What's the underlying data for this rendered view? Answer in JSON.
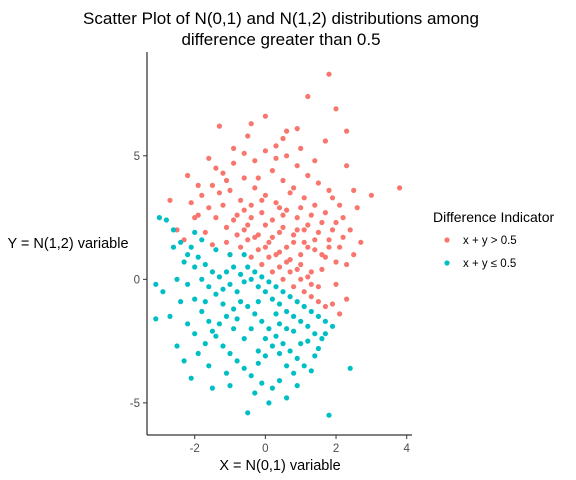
{
  "chart_data": {
    "type": "scatter",
    "title_line1": "Scatter Plot of N(0,1) and N(1,2) distributions among",
    "title_line2": "difference greater than 0.5",
    "xlabel": "X = N(0,1) variable",
    "ylabel": "Y = N(1,2) variable",
    "xlim": [
      -3.35,
      4.15
    ],
    "ylim": [
      -6.3,
      9.2
    ],
    "xticks": [
      -2,
      0,
      2,
      4
    ],
    "yticks": [
      -5,
      0,
      5
    ],
    "xtick_labels": [
      "-2",
      "0",
      "2",
      "4"
    ],
    "ytick_labels": [
      "-5",
      "0",
      "5"
    ],
    "grid": false,
    "legend": {
      "title": "Difference Indicator",
      "placement": "right"
    },
    "series": [
      {
        "name": "x + y > 0.5",
        "color": "#F8766D",
        "points": [
          [
            1.8,
            8.3
          ],
          [
            1.2,
            7.4
          ],
          [
            2.0,
            6.9
          ],
          [
            0.0,
            6.6
          ],
          [
            0.9,
            6.1
          ],
          [
            2.3,
            6.0
          ],
          [
            -1.3,
            6.2
          ],
          [
            1.7,
            5.6
          ],
          [
            -0.5,
            5.8
          ],
          [
            0.5,
            5.7
          ],
          [
            -1.6,
            4.9
          ],
          [
            2.3,
            4.6
          ],
          [
            3.8,
            3.7
          ],
          [
            3.0,
            3.4
          ],
          [
            -2.7,
            3.2
          ],
          [
            -2.2,
            4.2
          ],
          [
            -1.9,
            3.8
          ],
          [
            1.9,
            3.3
          ],
          [
            2.6,
            2.9
          ],
          [
            2.2,
            2.5
          ],
          [
            2.7,
            1.5
          ],
          [
            2.5,
            1.0
          ],
          [
            2.3,
            0.6
          ],
          [
            2.0,
            -0.2
          ],
          [
            2.3,
            -0.8
          ],
          [
            1.9,
            -1.0
          ],
          [
            2.1,
            -1.4
          ],
          [
            -2.5,
            2.0
          ],
          [
            -2.3,
            1.6
          ],
          [
            -2.0,
            2.5
          ],
          [
            -1.7,
            1.9
          ],
          [
            -1.5,
            1.4
          ],
          [
            -1.1,
            1.5
          ],
          [
            -1.0,
            1.0
          ],
          [
            -0.7,
            1.3
          ],
          [
            -0.4,
            0.9
          ],
          [
            -0.1,
            0.6
          ],
          [
            0.2,
            0.3
          ],
          [
            0.5,
            0.0
          ],
          [
            0.8,
            -0.3
          ],
          [
            1.1,
            -0.5
          ],
          [
            1.3,
            -0.7
          ],
          [
            1.5,
            -0.9
          ],
          [
            1.7,
            -1.1
          ],
          [
            1.6,
            0.4
          ],
          [
            -1.2,
            3.0
          ],
          [
            -0.8,
            2.6
          ],
          [
            -0.5,
            2.2
          ],
          [
            -0.2,
            1.8
          ],
          [
            0.1,
            1.5
          ],
          [
            0.4,
            1.1
          ],
          [
            0.7,
            0.8
          ],
          [
            1.0,
            0.6
          ],
          [
            1.3,
            0.3
          ],
          [
            -1.8,
            3.4
          ],
          [
            -1.5,
            3.8
          ],
          [
            -1.2,
            4.3
          ],
          [
            -0.9,
            4.7
          ],
          [
            -0.6,
            5.1
          ],
          [
            -0.3,
            4.8
          ],
          [
            0.0,
            5.2
          ],
          [
            0.3,
            4.9
          ],
          [
            0.6,
            5.0
          ],
          [
            0.9,
            4.6
          ],
          [
            1.2,
            4.2
          ],
          [
            1.5,
            3.9
          ],
          [
            1.8,
            3.6
          ],
          [
            2.1,
            3.0
          ],
          [
            -1.0,
            3.6
          ],
          [
            -0.7,
            3.2
          ],
          [
            -0.4,
            3.0
          ],
          [
            -0.1,
            2.7
          ],
          [
            0.2,
            2.4
          ],
          [
            0.5,
            2.1
          ],
          [
            0.8,
            1.8
          ],
          [
            1.1,
            1.5
          ],
          [
            1.4,
            1.2
          ],
          [
            1.7,
            0.9
          ],
          [
            2.0,
            0.7
          ],
          [
            -1.4,
            2.5
          ],
          [
            -1.1,
            2.1
          ],
          [
            -0.8,
            1.8
          ],
          [
            -0.5,
            1.6
          ],
          [
            -0.2,
            1.2
          ],
          [
            0.1,
            0.9
          ],
          [
            0.4,
            0.5
          ],
          [
            0.7,
            0.3
          ],
          [
            1.0,
            0.0
          ],
          [
            1.3,
            -0.2
          ],
          [
            -0.6,
            4.1
          ],
          [
            -0.3,
            3.7
          ],
          [
            0.0,
            3.4
          ],
          [
            0.3,
            3.1
          ],
          [
            0.6,
            2.8
          ],
          [
            0.9,
            2.5
          ],
          [
            1.2,
            2.2
          ],
          [
            1.5,
            1.9
          ],
          [
            1.8,
            1.6
          ],
          [
            2.1,
            1.3
          ],
          [
            -0.9,
            2.4
          ],
          [
            -0.6,
            2.0
          ],
          [
            -0.3,
            1.7
          ],
          [
            0.0,
            1.3
          ],
          [
            0.3,
            1.0
          ],
          [
            0.6,
            0.7
          ],
          [
            0.9,
            0.4
          ],
          [
            1.2,
            0.1
          ],
          [
            1.5,
            -0.3
          ],
          [
            0.2,
            4.4
          ],
          [
            0.5,
            4.0
          ],
          [
            0.8,
            3.7
          ],
          [
            1.1,
            3.3
          ],
          [
            1.4,
            3.0
          ],
          [
            1.7,
            2.7
          ],
          [
            2.0,
            2.3
          ],
          [
            -0.4,
            2.5
          ],
          [
            0.0,
            2.2
          ],
          [
            0.4,
            1.9
          ],
          [
            0.8,
            1.5
          ],
          [
            1.2,
            1.3
          ],
          [
            1.6,
            1.0
          ],
          [
            -1.6,
            2.9
          ],
          [
            -1.9,
            2.6
          ],
          [
            -2.1,
            3.1
          ],
          [
            -1.3,
            3.5
          ],
          [
            -0.2,
            4.1
          ],
          [
            0.7,
            3.5
          ],
          [
            1.0,
            2.9
          ],
          [
            1.3,
            2.6
          ],
          [
            1.6,
            2.3
          ],
          [
            1.9,
            2.0
          ],
          [
            -0.1,
            3.2
          ],
          [
            0.5,
            2.6
          ],
          [
            0.9,
            2.0
          ],
          [
            1.4,
            1.6
          ],
          [
            0.3,
            5.4
          ],
          [
            -0.9,
            5.3
          ],
          [
            1.0,
            5.3
          ],
          [
            1.4,
            4.8
          ],
          [
            -1.4,
            4.5
          ],
          [
            2.4,
            2.0
          ],
          [
            2.5,
            3.6
          ],
          [
            -0.4,
            6.3
          ],
          [
            0.6,
            6.0
          ],
          [
            1.0,
            1.0
          ],
          [
            0.6,
            1.3
          ],
          [
            0.2,
            1.7
          ],
          [
            1.1,
            2.0
          ],
          [
            0.4,
            2.9
          ],
          [
            -0.6,
            2.8
          ],
          [
            1.8,
            1.3
          ],
          [
            2.2,
            1.7
          ],
          [
            -1.1,
            4.0
          ]
        ]
      },
      {
        "name": "x + y ≤ 0.5",
        "color": "#00BFC4",
        "points": [
          [
            -3.0,
            2.5
          ],
          [
            -2.8,
            2.4
          ],
          [
            -2.6,
            2.0
          ],
          [
            -2.4,
            1.5
          ],
          [
            -2.2,
            1.0
          ],
          [
            -2.0,
            0.5
          ],
          [
            -1.8,
            0.0
          ],
          [
            -1.6,
            -0.3
          ],
          [
            -1.4,
            -0.6
          ],
          [
            -1.2,
            -0.4
          ],
          [
            -1.0,
            -0.2
          ],
          [
            -0.8,
            -0.5
          ],
          [
            -0.6,
            -0.1
          ],
          [
            -0.4,
            0.0
          ],
          [
            -0.2,
            -0.3
          ],
          [
            0.0,
            -0.5
          ],
          [
            0.2,
            -0.8
          ],
          [
            0.4,
            -1.0
          ],
          [
            0.6,
            -1.3
          ],
          [
            0.8,
            -1.5
          ],
          [
            1.0,
            -1.7
          ],
          [
            1.2,
            -1.9
          ],
          [
            1.4,
            -2.2
          ],
          [
            1.6,
            -2.4
          ],
          [
            -3.1,
            -0.2
          ],
          [
            -3.1,
            -1.6
          ],
          [
            -2.5,
            -2.7
          ],
          [
            -2.3,
            -3.3
          ],
          [
            -2.1,
            -4.0
          ],
          [
            -1.9,
            -3.0
          ],
          [
            -1.7,
            -2.6
          ],
          [
            -1.5,
            -2.1
          ],
          [
            -1.3,
            -1.8
          ],
          [
            -1.1,
            -1.5
          ],
          [
            -0.9,
            -1.2
          ],
          [
            -0.7,
            -0.9
          ],
          [
            -0.5,
            -1.1
          ],
          [
            -0.3,
            -1.4
          ],
          [
            -0.1,
            -1.7
          ],
          [
            0.1,
            -2.0
          ],
          [
            0.3,
            -2.3
          ],
          [
            0.5,
            -2.6
          ],
          [
            0.7,
            -2.9
          ],
          [
            0.9,
            -3.2
          ],
          [
            1.1,
            -3.5
          ],
          [
            1.3,
            -3.7
          ],
          [
            1.5,
            -2.8
          ],
          [
            1.7,
            -2.2
          ],
          [
            -0.5,
            -5.4
          ],
          [
            0.1,
            -5.0
          ],
          [
            1.8,
            -5.5
          ],
          [
            2.4,
            -3.6
          ],
          [
            -1.0,
            -4.3
          ],
          [
            -0.3,
            -4.6
          ],
          [
            0.4,
            -4.1
          ],
          [
            0.9,
            -4.3
          ],
          [
            -2.2,
            -0.2
          ],
          [
            -2.0,
            -0.8
          ],
          [
            -1.8,
            -1.3
          ],
          [
            -1.6,
            -1.7
          ],
          [
            -1.4,
            -2.3
          ],
          [
            -1.2,
            -2.7
          ],
          [
            -1.0,
            -3.0
          ],
          [
            -0.8,
            -3.3
          ],
          [
            -0.6,
            -3.6
          ],
          [
            -0.4,
            -3.9
          ],
          [
            -0.2,
            -3.4
          ],
          [
            0.0,
            -3.1
          ],
          [
            0.2,
            -2.7
          ],
          [
            0.4,
            -3.0
          ],
          [
            0.6,
            -3.5
          ],
          [
            0.8,
            -3.8
          ],
          [
            -2.6,
            1.3
          ],
          [
            -2.3,
            0.7
          ],
          [
            -2.1,
            1.3
          ],
          [
            -1.9,
            0.9
          ],
          [
            -1.7,
            0.6
          ],
          [
            -1.5,
            0.3
          ],
          [
            -1.3,
            0.1
          ],
          [
            -1.1,
            0.3
          ],
          [
            -0.9,
            0.5
          ],
          [
            -0.7,
            0.2
          ],
          [
            -0.5,
            0.5
          ],
          [
            -0.3,
            0.3
          ],
          [
            -0.1,
            0.1
          ],
          [
            0.1,
            -0.1
          ],
          [
            0.3,
            -0.3
          ],
          [
            0.5,
            -0.5
          ],
          [
            0.7,
            -0.7
          ],
          [
            0.9,
            -0.9
          ],
          [
            1.1,
            -1.1
          ],
          [
            1.3,
            -1.3
          ],
          [
            1.5,
            -1.5
          ],
          [
            1.7,
            -1.7
          ],
          [
            1.9,
            -1.9
          ],
          [
            -1.2,
            -1.0
          ],
          [
            -0.8,
            -1.6
          ],
          [
            -0.4,
            -2.0
          ],
          [
            0.0,
            -2.4
          ],
          [
            0.4,
            -1.8
          ],
          [
            0.8,
            -2.1
          ],
          [
            1.2,
            -2.5
          ],
          [
            -1.6,
            -3.5
          ],
          [
            -2.0,
            -2.2
          ],
          [
            -2.7,
            -1.5
          ],
          [
            -2.9,
            -0.5
          ],
          [
            -2.5,
            0.0
          ],
          [
            -1.0,
            1.0
          ],
          [
            -0.6,
            1.0
          ],
          [
            -1.4,
            1.2
          ],
          [
            -1.8,
            1.6
          ],
          [
            -2.0,
            1.9
          ],
          [
            -0.2,
            -2.9
          ],
          [
            0.2,
            -4.4
          ],
          [
            -1.1,
            -3.8
          ],
          [
            1.0,
            -2.6
          ],
          [
            1.4,
            -3.1
          ],
          [
            -0.6,
            -2.4
          ],
          [
            -0.9,
            -2.0
          ],
          [
            -1.7,
            -0.9
          ],
          [
            0.6,
            -2.0
          ],
          [
            -0.2,
            -0.9
          ],
          [
            0.3,
            -1.4
          ],
          [
            -2.4,
            -0.9
          ],
          [
            -2.2,
            -1.8
          ],
          [
            -1.5,
            -4.4
          ],
          [
            -0.1,
            -4.2
          ],
          [
            0.6,
            -4.8
          ]
        ]
      }
    ]
  }
}
